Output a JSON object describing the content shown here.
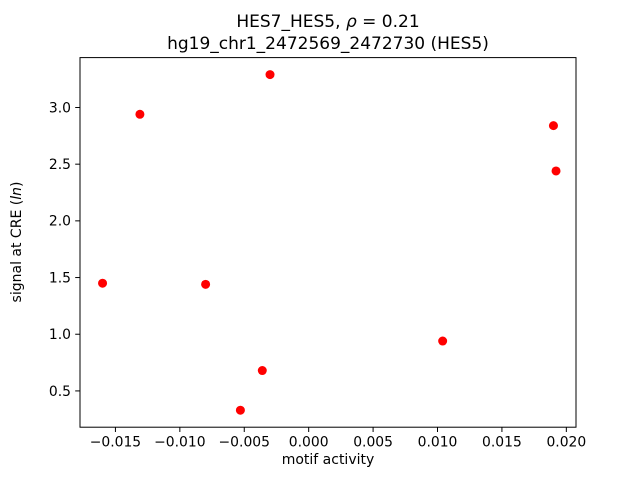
{
  "chart_data": {
    "type": "scatter",
    "title_line1": {
      "prefix": "HES7_HES5, ",
      "italic": "ρ",
      "suffix": " = 0.21"
    },
    "title_line2": "hg19_chr1_2472569_2472730 (HES5)",
    "xlabel": "motif activity",
    "ylabel": {
      "prefix": "signal at CRE (",
      "italic": "ln",
      "suffix": ")"
    },
    "marker_color": "#ff0000",
    "axis_color": "#000000",
    "xlim": [
      -0.01775,
      0.02075
    ],
    "ylim": [
      0.18,
      3.44
    ],
    "x_ticks": [
      -0.015,
      -0.01,
      -0.005,
      0.0,
      0.005,
      0.01,
      0.015,
      0.02
    ],
    "x_tick_labels": [
      "−0.015",
      "−0.010",
      "−0.005",
      "0.000",
      "0.005",
      "0.010",
      "0.015",
      "0.020"
    ],
    "y_ticks": [
      0.5,
      1.0,
      1.5,
      2.0,
      2.5,
      3.0
    ],
    "y_tick_labels": [
      "0.5",
      "1.0",
      "1.5",
      "2.0",
      "2.5",
      "3.0"
    ],
    "points": [
      {
        "x": -0.016,
        "y": 1.45
      },
      {
        "x": -0.0131,
        "y": 2.94
      },
      {
        "x": -0.008,
        "y": 1.44
      },
      {
        "x": -0.0053,
        "y": 0.33
      },
      {
        "x": -0.0036,
        "y": 0.68
      },
      {
        "x": -0.003,
        "y": 3.29
      },
      {
        "x": 0.0104,
        "y": 0.94
      },
      {
        "x": 0.019,
        "y": 2.84
      },
      {
        "x": 0.0192,
        "y": 2.44
      }
    ]
  }
}
